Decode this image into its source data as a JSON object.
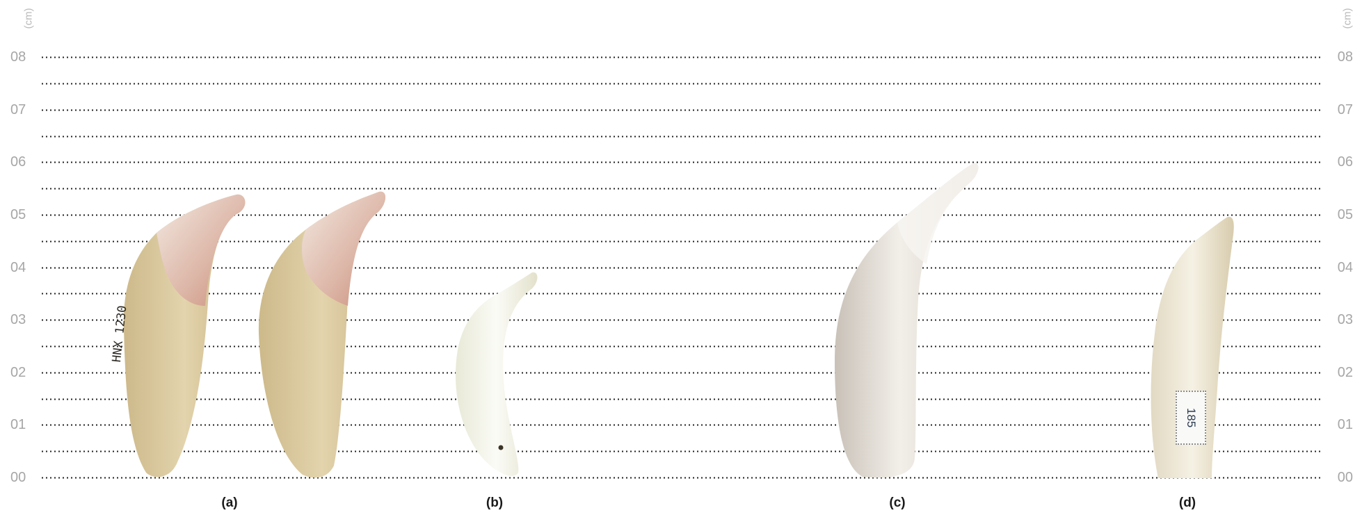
{
  "scale": {
    "unit": "(cm)",
    "ticks": [
      "00",
      "01",
      "02",
      "03",
      "04",
      "05",
      "06",
      "07",
      "08"
    ]
  },
  "specimens": [
    {
      "caption": "(a)",
      "label_text": "HNX 1230"
    },
    {
      "caption": "(b)"
    },
    {
      "caption": "(c)"
    },
    {
      "caption": "(d)",
      "label_text": "185"
    }
  ],
  "colors": {
    "gridline": "#222222",
    "tick_text": "#a6a6a6",
    "tooth_root": "#dccba0",
    "tooth_enamel": "#f2eee6",
    "tooth_white": "#f7f7f2",
    "tooth_c": "#ece7e0"
  }
}
